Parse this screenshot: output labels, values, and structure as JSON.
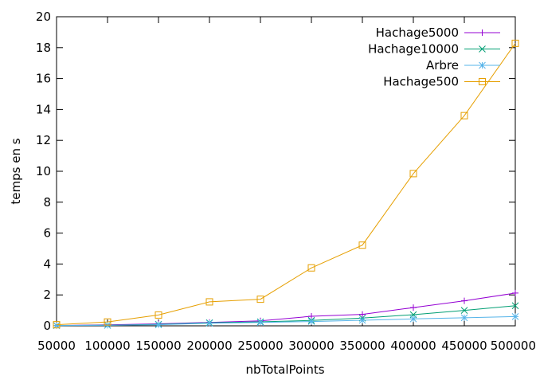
{
  "chart_data": {
    "type": "line",
    "xlabel": "nbTotalPoints",
    "ylabel": "temps en s",
    "xlim": [
      50000,
      500000
    ],
    "ylim": [
      0,
      20
    ],
    "xticks": [
      "50000",
      "100000",
      "150000",
      "200000",
      "250000",
      "300000",
      "350000",
      "400000",
      "450000",
      "500000"
    ],
    "yticks": [
      "0",
      "2",
      "4",
      "6",
      "8",
      "10",
      "12",
      "14",
      "16",
      "18",
      "20"
    ],
    "grid": false,
    "legend_position": "top-right",
    "x": [
      50000,
      100000,
      150000,
      200000,
      250000,
      300000,
      350000,
      400000,
      450000,
      500000
    ],
    "series": [
      {
        "name": "Hachage5000",
        "color": "#9400d3",
        "marker": "plus",
        "values": [
          0.02,
          0.06,
          0.13,
          0.22,
          0.32,
          0.62,
          0.74,
          1.18,
          1.62,
          2.12
        ]
      },
      {
        "name": "Hachage10000",
        "color": "#009e73",
        "marker": "cross",
        "values": [
          0.02,
          0.04,
          0.1,
          0.2,
          0.26,
          0.35,
          0.5,
          0.72,
          1.0,
          1.3
        ]
      },
      {
        "name": "Arbre",
        "color": "#56b4e9",
        "marker": "star",
        "values": [
          0.02,
          0.03,
          0.07,
          0.17,
          0.22,
          0.28,
          0.36,
          0.45,
          0.52,
          0.6
        ]
      },
      {
        "name": "Hachage500",
        "color": "#e69f00",
        "marker": "square",
        "values": [
          0.07,
          0.25,
          0.7,
          1.55,
          1.72,
          3.75,
          5.22,
          9.85,
          13.6,
          18.28
        ]
      }
    ]
  }
}
